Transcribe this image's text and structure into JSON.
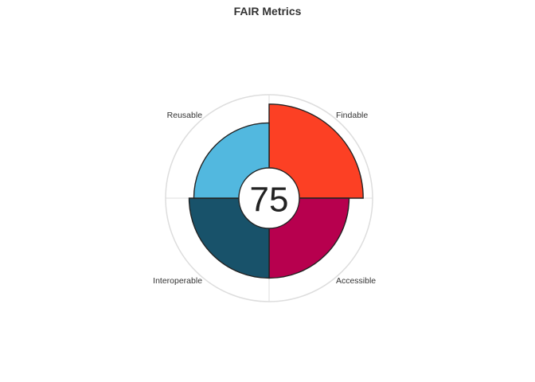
{
  "chart_data": {
    "type": "polar-bar",
    "title": "FAIR Metrics",
    "categories": [
      "Findable",
      "Accessible",
      "Interoperable",
      "Reusable"
    ],
    "values": [
      100,
      85,
      85,
      80
    ],
    "rlim": [
      0,
      110
    ],
    "colors": [
      "#FC4024",
      "#B7004E",
      "#18526A",
      "#52B8DF"
    ],
    "center_value": "75",
    "grid": true
  }
}
